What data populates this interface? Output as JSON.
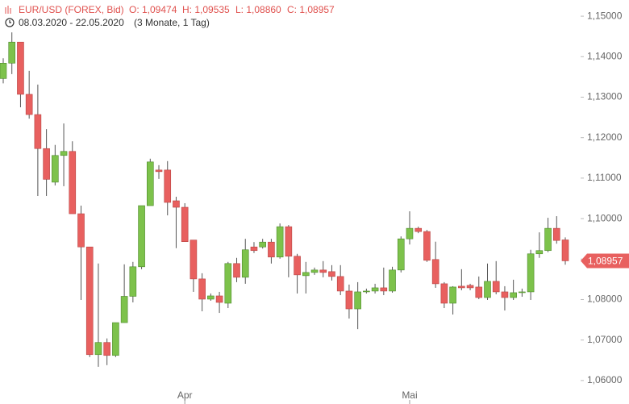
{
  "chart_data": {
    "type": "candlestick",
    "title": "EUR/USD (FOREX, Bid)",
    "summary": [
      "O: 1,09474",
      "H: 1,09535",
      "L: 1,08860",
      "C: 1,08957"
    ],
    "period": "08.03.2020 - 22.05.2020",
    "span": "(3 Monate, 1 Tag)",
    "categories": [
      null,
      null,
      null,
      null,
      null,
      null,
      null,
      null,
      null,
      null,
      null,
      null,
      null,
      null,
      null,
      null,
      null,
      null,
      null,
      null,
      null,
      "Apr",
      null,
      null,
      null,
      null,
      null,
      null,
      null,
      null,
      null,
      null,
      null,
      null,
      null,
      null,
      null,
      null,
      null,
      null,
      null,
      null,
      null,
      null,
      null,
      null,
      null,
      "Mai",
      null,
      null,
      null,
      null,
      null,
      null,
      null,
      null,
      null,
      null,
      null,
      null,
      null,
      null,
      null,
      null,
      null,
      null
    ],
    "open": [
      1.1346,
      1.1384,
      1.1436,
      1.1307,
      1.1257,
      1.1173,
      1.109,
      1.1156,
      1.1166,
      1.1012,
      1.093,
      1.0664,
      1.0694,
      1.0662,
      1.0743,
      1.0808,
      1.0881,
      1.1032,
      1.112,
      1.112,
      1.1044,
      1.1028,
      1.0947,
      1.0851,
      1.0801,
      1.0809,
      1.0791,
      1.0889,
      1.0855,
      1.093,
      1.093,
      1.0942,
      1.0905,
      1.098,
      1.0907,
      1.0859,
      1.0867,
      1.0873,
      1.0869,
      1.0857,
      1.0821,
      1.0777,
      1.0819,
      1.0821,
      1.0829,
      1.0821,
      1.0873,
      1.095,
      1.0976,
      1.0968,
      1.0899,
      1.0839,
      1.0791,
      1.0833,
      1.0835,
      1.0831,
      1.0805,
      1.0845,
      1.0819,
      1.0805,
      1.0817,
      1.0819,
      1.0913,
      1.0921,
      1.0976,
      1.09474
    ],
    "high": [
      1.1396,
      1.146,
      1.1436,
      1.1365,
      1.1331,
      1.1221,
      1.1182,
      1.1235,
      1.1191,
      1.1032,
      1.093,
      1.0889,
      1.0704,
      1.0743,
      1.0887,
      1.0893,
      1.1032,
      1.1148,
      1.1132,
      1.1142,
      1.1054,
      1.1038,
      1.0947,
      1.0865,
      1.0815,
      1.0819,
      1.0893,
      1.0903,
      1.095,
      1.0942,
      1.095,
      1.095,
      1.0988,
      1.0984,
      1.0913,
      1.0893,
      1.0879,
      1.0895,
      1.0885,
      1.0885,
      1.0837,
      1.0843,
      1.0827,
      1.0839,
      1.0879,
      1.0881,
      1.0956,
      1.1018,
      1.098,
      1.0972,
      1.0943,
      1.0843,
      1.0833,
      1.0875,
      1.0839,
      1.0857,
      1.0889,
      1.0895,
      1.0833,
      1.0849,
      1.0827,
      1.0923,
      1.0966,
      1.1002,
      1.1006,
      1.09535
    ],
    "low": [
      1.1334,
      1.1357,
      1.1275,
      1.1247,
      1.1056,
      1.1056,
      1.1082,
      1.108,
      1.1012,
      1.0799,
      1.0658,
      1.0634,
      1.0638,
      1.0658,
      1.0743,
      1.0793,
      1.0875,
      1.1032,
      1.1098,
      1.1008,
      1.0927,
      1.0943,
      1.0819,
      1.0771,
      1.0797,
      1.0767,
      1.0779,
      1.0843,
      1.0839,
      1.0915,
      1.0926,
      1.0889,
      1.0901,
      1.0855,
      1.0815,
      1.0815,
      1.0861,
      1.0855,
      1.0847,
      1.0811,
      1.0753,
      1.0727,
      1.0815,
      1.0815,
      1.0811,
      1.0817,
      1.0867,
      1.0936,
      1.0964,
      1.0893,
      1.0829,
      1.0779,
      1.0763,
      1.0823,
      1.0823,
      1.0801,
      1.0799,
      1.0813,
      1.0773,
      1.0799,
      1.0807,
      1.0799,
      1.0903,
      1.0917,
      1.0938,
      1.0886
    ],
    "close": [
      1.1384,
      1.1436,
      1.1307,
      1.1257,
      1.1173,
      1.1097,
      1.1156,
      1.1166,
      1.1012,
      1.093,
      1.0664,
      1.0694,
      1.0662,
      1.0743,
      1.0808,
      1.0881,
      1.1032,
      1.114,
      1.1116,
      1.104,
      1.1028,
      1.0943,
      1.0851,
      1.0801,
      1.0809,
      1.0793,
      1.0889,
      1.0855,
      1.0923,
      1.0921,
      1.0942,
      1.0905,
      1.098,
      1.0907,
      1.0861,
      1.0867,
      1.0873,
      1.0867,
      1.0857,
      1.0821,
      1.0777,
      1.0819,
      1.0821,
      1.0829,
      1.0821,
      1.0873,
      1.095,
      1.0976,
      1.0968,
      1.0897,
      1.0839,
      1.0791,
      1.0831,
      1.0829,
      1.0829,
      1.0805,
      1.0845,
      1.0819,
      1.0805,
      1.0817,
      1.0819,
      1.0913,
      1.0921,
      1.0976,
      1.0946,
      1.08957
    ],
    "up_color": "#7dc24b",
    "down_color": "#e8605f",
    "ylim": [
      1.0542,
      1.154
    ],
    "yticks": [
      {
        "value": 1.06,
        "label": "1,06000"
      },
      {
        "value": 1.07,
        "label": "1,07000"
      },
      {
        "value": 1.08,
        "label": "1,08000"
      },
      {
        "value": 1.09,
        "label": "1,09000"
      },
      {
        "value": 1.1,
        "label": "1,10000"
      },
      {
        "value": 1.11,
        "label": "1,11000"
      },
      {
        "value": 1.12,
        "label": "1,12000"
      },
      {
        "value": 1.13,
        "label": "1,13000"
      },
      {
        "value": 1.14,
        "label": "1,14000"
      },
      {
        "value": 1.15,
        "label": "1,15000"
      }
    ],
    "current_price": {
      "value": 1.08957,
      "label": "1,08957"
    }
  }
}
